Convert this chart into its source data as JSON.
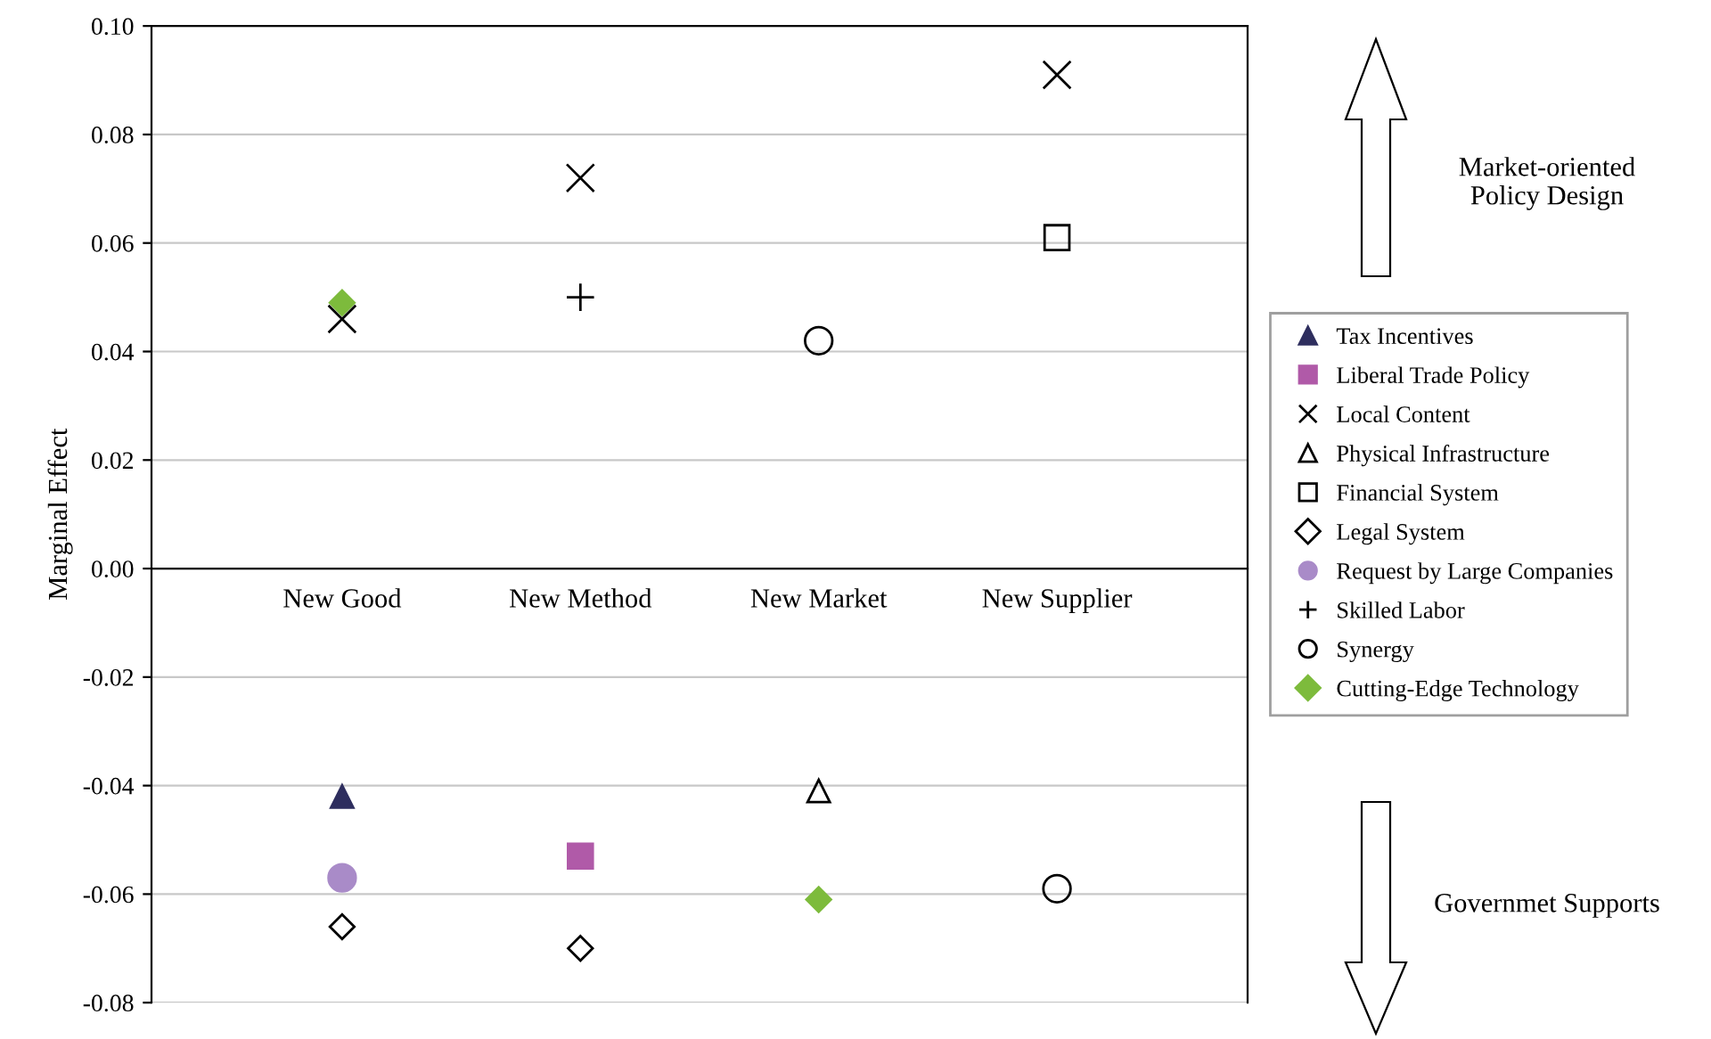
{
  "chart_data": {
    "type": "scatter",
    "ylabel": "Marginal Effect",
    "categories": [
      "New Good",
      "New Method",
      "New Market",
      "New Supplier"
    ],
    "ylim": [
      -0.08,
      0.1
    ],
    "yticks": [
      {
        "value": 0.1,
        "label": "0.10"
      },
      0.08,
      0.06,
      0.04,
      0.02,
      {
        "value": 0.0,
        "label": "0.00"
      },
      -0.02,
      -0.04,
      -0.06,
      -0.08
    ],
    "grid": "y",
    "legend": "right",
    "annotations": [
      "Market-oriented\nPolicy Design",
      "Governmet Supports"
    ],
    "series": [
      {
        "name": "Tax Incentives",
        "color": "#2e2e5e",
        "marker": "triangle",
        "x": [
          "New Good"
        ],
        "values": [
          -0.042
        ]
      },
      {
        "name": "Liberal Trade Policy",
        "color": "#b05aa8",
        "marker": "square",
        "x": [
          "New Method"
        ],
        "values": [
          -0.053
        ]
      },
      {
        "name": "Local Content",
        "color": "#000000",
        "marker": "cross",
        "x": [
          "New Good",
          "New Method",
          "New Supplier"
        ],
        "values": [
          0.046,
          0.072,
          0.091
        ]
      },
      {
        "name": "Physical Infrastructure",
        "color": "#000000",
        "marker": "triangle",
        "x": [
          "New Market"
        ],
        "values": [
          -0.041
        ]
      },
      {
        "name": "Financial System",
        "color": "#000000",
        "marker": "square",
        "x": [
          "New Supplier"
        ],
        "values": [
          0.061
        ]
      },
      {
        "name": "Legal System",
        "color": "#000000",
        "marker": "diamond",
        "x": [
          "New Good",
          "New Method"
        ],
        "values": [
          -0.066,
          -0.07
        ]
      },
      {
        "name": "Request by Large Companies",
        "color": "#a98bc8",
        "marker": "circle",
        "x": [
          "New Good"
        ],
        "values": [
          -0.057
        ]
      },
      {
        "name": "Skilled Labor",
        "color": "#000000",
        "marker": "plus",
        "x": [
          "New Method"
        ],
        "values": [
          0.05
        ]
      },
      {
        "name": "Synergy",
        "color": "#000000",
        "marker": "circle",
        "x": [
          "New Market",
          "New Supplier"
        ],
        "values": [
          0.042,
          -0.059
        ]
      },
      {
        "name": "Cutting-Edge Technology",
        "color": "#7dbb3c",
        "marker": "diamond",
        "x": [
          "New Good",
          "New Market"
        ],
        "values": [
          0.049,
          -0.061
        ]
      }
    ]
  }
}
